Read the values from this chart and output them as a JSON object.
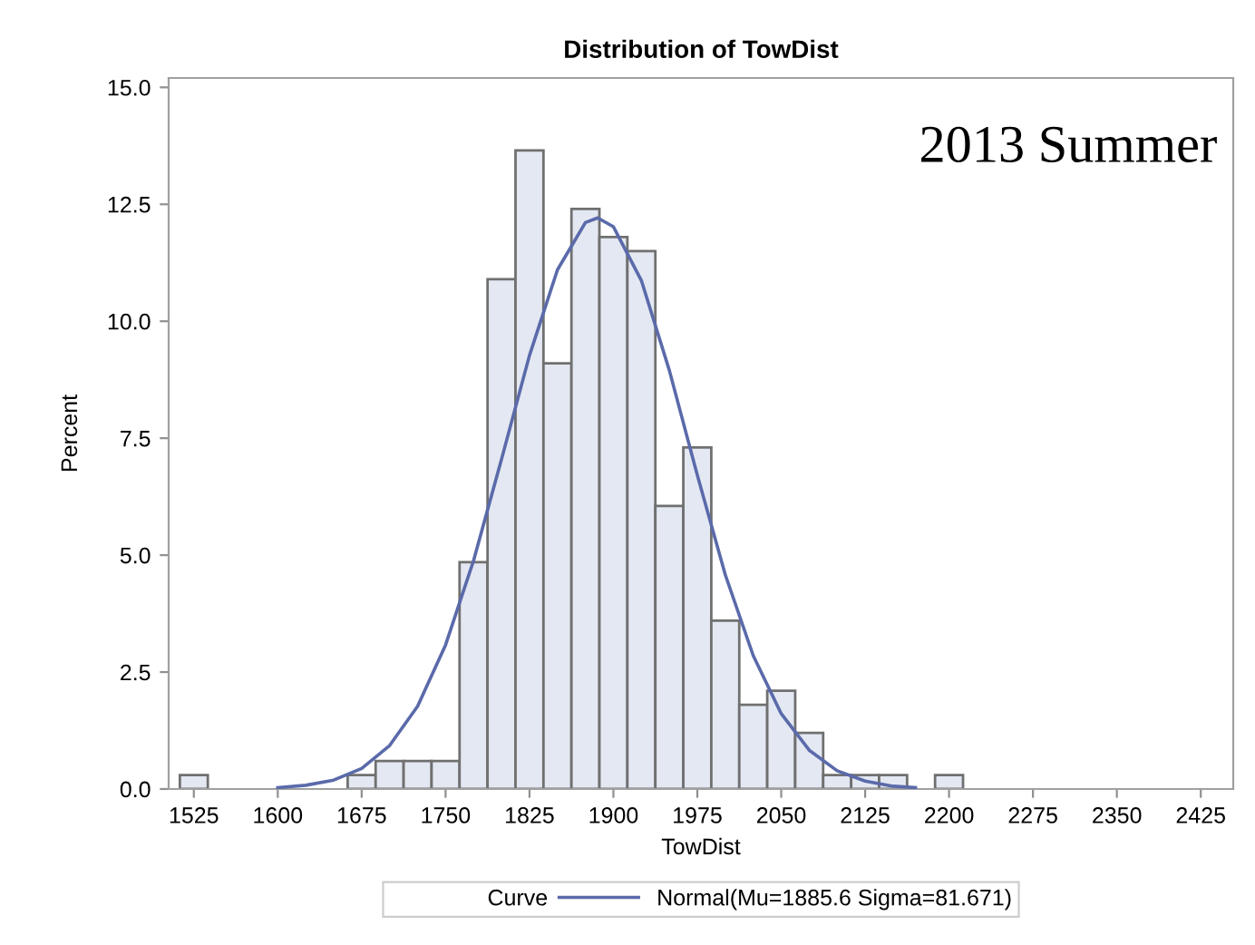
{
  "chart_data": {
    "type": "histogram",
    "title": "Distribution of TowDist",
    "xlabel": "TowDist",
    "ylabel": "Percent",
    "bins": [
      1512.5,
      1537.5,
      1562.5,
      1587.5,
      1612.5,
      1637.5,
      1662.5,
      1687.5,
      1712.5,
      1737.5,
      1762.5,
      1787.5,
      1812.5,
      1837.5,
      1862.5,
      1887.5,
      1912.5,
      1937.5,
      1962.5,
      1987.5,
      2012.5,
      2037.5,
      2062.5,
      2087.5,
      2112.5,
      2137.5,
      2162.5,
      2187.5,
      2212.5
    ],
    "values": [
      0.3,
      0,
      0,
      0,
      0,
      0,
      0.3,
      0.6,
      0.6,
      0.6,
      4.85,
      10.9,
      13.65,
      9.1,
      12.4,
      11.8,
      11.5,
      6.05,
      7.3,
      3.6,
      1.8,
      2.1,
      1.2,
      0.3,
      0.3,
      0.3,
      0,
      0.3
    ],
    "color": "#e3e8f2",
    "series": [
      {
        "type": "line",
        "name": "Normal(Mu=1885.6 Sigma=81.671)",
        "color": "#5a6aaa",
        "x": [
          1600,
          1625,
          1650,
          1675,
          1700,
          1725,
          1750,
          1775,
          1800,
          1825,
          1850,
          1875,
          1886,
          1900,
          1925,
          1950,
          1975,
          2000,
          2025,
          2050,
          2075,
          2100,
          2125,
          2150,
          2170
        ],
        "values": [
          0.03,
          0.08,
          0.19,
          0.44,
          0.93,
          1.77,
          3.08,
          4.88,
          7.05,
          9.27,
          11.1,
          12.11,
          12.21,
          12.02,
          10.87,
          8.95,
          6.71,
          4.58,
          2.85,
          1.61,
          0.83,
          0.39,
          0.17,
          0.06,
          0.03
        ]
      }
    ],
    "legend": "bottom",
    "legend_title": "Curve",
    "grid": false,
    "marker": "none",
    "line_style": "solid",
    "xlim": [
      1502.5,
      2454
    ],
    "ylim": [
      0,
      15.2
    ],
    "xticks": [
      1525,
      1600,
      1675,
      1750,
      1825,
      1900,
      1975,
      2050,
      2125,
      2200,
      2275,
      2350,
      2425
    ],
    "yticks": [
      {
        "value": 0,
        "label": "0.0"
      },
      {
        "value": 2.5,
        "label": "2.5"
      },
      {
        "value": 5,
        "label": "5.0"
      },
      {
        "value": 7.5,
        "label": "7.5"
      },
      {
        "value": 10,
        "label": "10.0"
      },
      {
        "value": 12.5,
        "label": "12.5"
      },
      {
        "value": 15,
        "label": "15.0"
      }
    ],
    "annotations": [
      "2013 Summer"
    ]
  }
}
